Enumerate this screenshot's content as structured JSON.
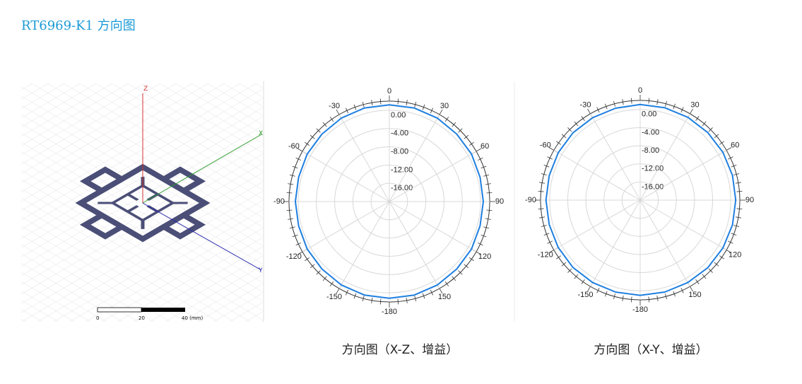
{
  "header": {
    "title": "RT6969-K1 方向图"
  },
  "model": {
    "axes": [
      "Z",
      "X",
      "Y"
    ],
    "scale_labels": [
      "0",
      "20",
      "40 (mm)"
    ]
  },
  "chart_data": [
    {
      "type": "polar",
      "caption": "方向图（X-Z、增益）",
      "color": "#1f7fe0",
      "angle_ticks": [
        0,
        30,
        60,
        90,
        120,
        150,
        -180,
        -150,
        -120,
        -90,
        -60,
        -30
      ],
      "rlim": [
        -20,
        2
      ],
      "rticks": [
        {
          "value": 0,
          "label": "0.00"
        },
        {
          "value": -4,
          "label": "-4.00"
        },
        {
          "value": -8,
          "label": "-8.00"
        },
        {
          "value": -12,
          "label": "-12.00"
        },
        {
          "value": -16,
          "label": "-16.00"
        }
      ],
      "theta": [
        -180,
        -165,
        -150,
        -135,
        -120,
        -105,
        -90,
        -75,
        -60,
        -45,
        -30,
        -15,
        0,
        15,
        30,
        45,
        60,
        75,
        90,
        105,
        120,
        135,
        150,
        165
      ],
      "values": [
        1.2,
        1.2,
        1.1,
        0.9,
        0.8,
        0.6,
        0.6,
        0.6,
        0.8,
        0.9,
        1.1,
        1.2,
        1.2,
        1.2,
        1.1,
        0.9,
        0.8,
        0.6,
        0.6,
        0.6,
        0.8,
        0.9,
        1.1,
        1.2
      ]
    },
    {
      "type": "polar",
      "caption": "方向图（X-Y、增益）",
      "color": "#1f7fe0",
      "angle_ticks": [
        0,
        30,
        60,
        90,
        120,
        150,
        -180,
        -150,
        -120,
        -90,
        -60,
        -30
      ],
      "rlim": [
        -20,
        2
      ],
      "rticks": [
        {
          "value": 0,
          "label": "0.00"
        },
        {
          "value": -4,
          "label": "-4.00"
        },
        {
          "value": -8,
          "label": "-8.00"
        },
        {
          "value": -12,
          "label": "-12.00"
        },
        {
          "value": -16,
          "label": "-16.00"
        }
      ],
      "theta": [
        -180,
        -165,
        -150,
        -135,
        -120,
        -105,
        -90,
        -75,
        -60,
        -45,
        -30,
        -15,
        0,
        15,
        30,
        45,
        60,
        75,
        90,
        105,
        120,
        135,
        150,
        165
      ],
      "values": [
        1.0,
        1.0,
        1.0,
        1.0,
        0.9,
        0.8,
        0.8,
        0.8,
        0.9,
        1.0,
        1.0,
        1.0,
        1.1,
        1.1,
        1.1,
        1.1,
        1.1,
        1.1,
        1.1,
        1.1,
        1.1,
        1.1,
        1.0,
        1.0
      ]
    }
  ]
}
